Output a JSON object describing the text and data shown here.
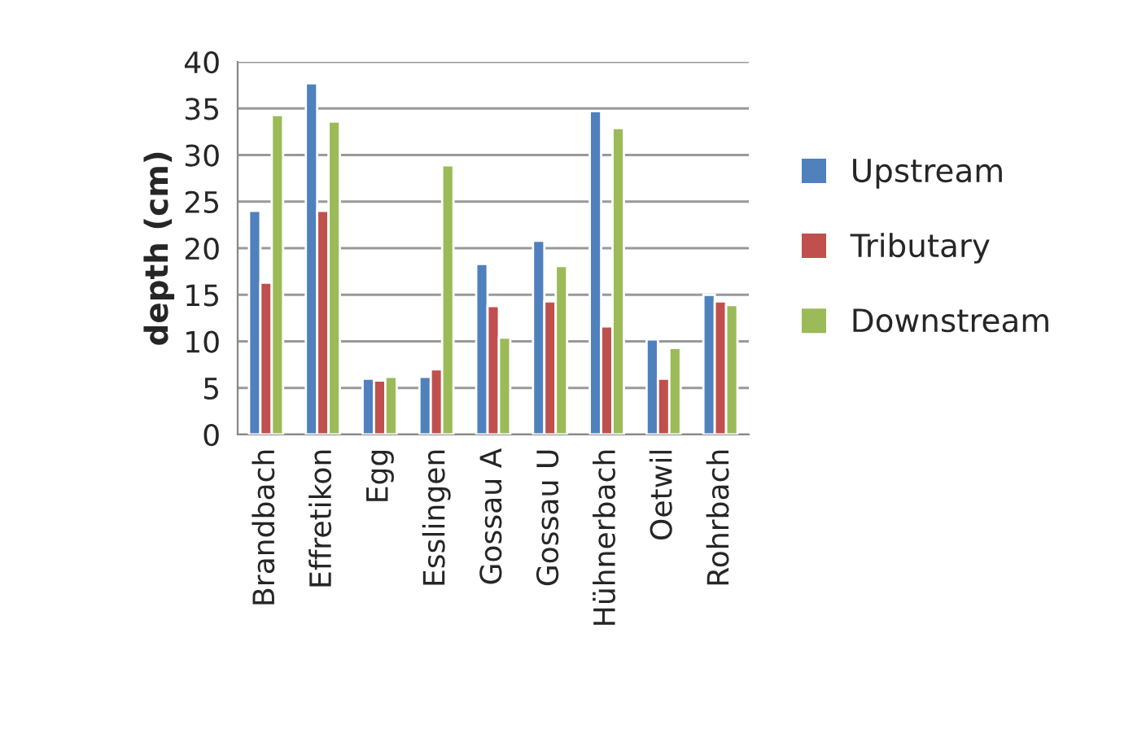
{
  "chart_data": {
    "type": "bar",
    "ylabel": "depth (cm)",
    "categories": [
      "Brandbach",
      "Effretikon",
      "Egg",
      "Esslingen",
      "Gossau A",
      "Gossau U",
      "Hühnerbach",
      "Oetwil",
      "Rohrbach"
    ],
    "series": [
      {
        "name": "Upstream",
        "color": "#4f81bd",
        "values": [
          24,
          37.7,
          6,
          6.2,
          18.3,
          20.8,
          34.7,
          10.2,
          15
        ]
      },
      {
        "name": "Tributary",
        "color": "#c0504d",
        "values": [
          16.3,
          24,
          5.8,
          7,
          13.8,
          14.3,
          11.6,
          6,
          14.3
        ]
      },
      {
        "name": "Downstream",
        "color": "#9bbb59",
        "values": [
          34.3,
          33.6,
          6.2,
          28.9,
          10.4,
          18.1,
          32.9,
          9.3,
          13.9
        ]
      }
    ],
    "ylim": [
      0,
      40
    ],
    "yticks": [
      0,
      5,
      10,
      15,
      20,
      25,
      30,
      35,
      40
    ],
    "grid": "y",
    "legend": "right"
  }
}
